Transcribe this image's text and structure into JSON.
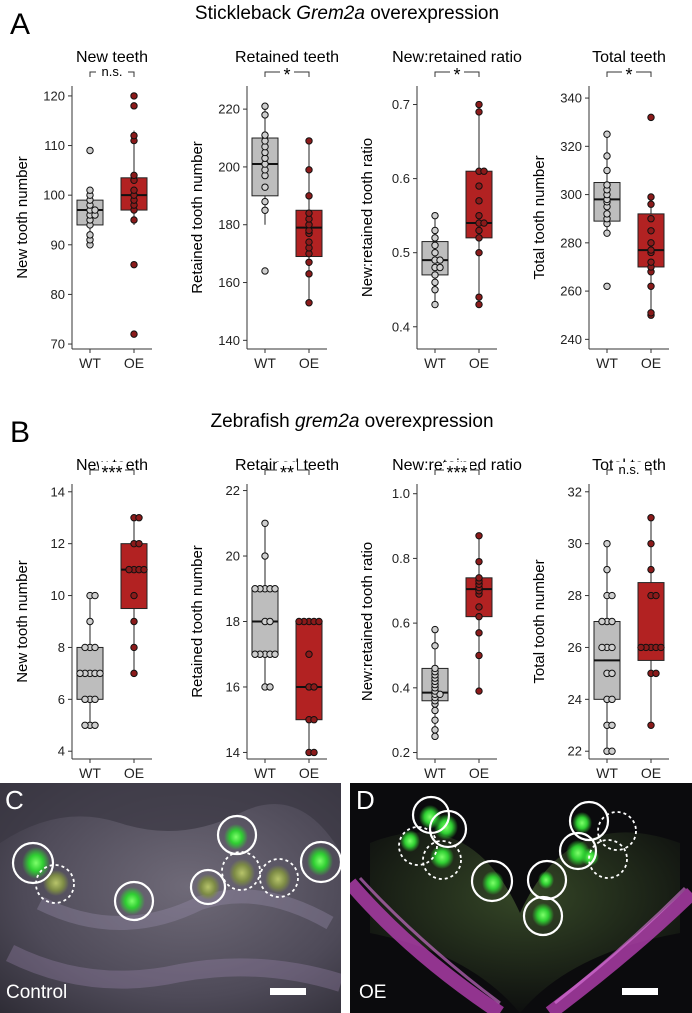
{
  "figure": {
    "panels": [
      {
        "letter": "A",
        "title_pre": "Stickleback ",
        "title_em": "Grem2a",
        "title_post": " overexpression"
      },
      {
        "letter": "B",
        "title_pre": "Zebrafish ",
        "title_em": "grem2a",
        "title_post": " overexpression"
      },
      {
        "letter": "C",
        "label": "Control"
      },
      {
        "letter": "D",
        "label": "OE"
      }
    ]
  },
  "colors": {
    "wt_box": "#bdbdbd",
    "oe_box": "#b22222",
    "wt_point": "#cfcfcf",
    "oe_point": "#8b1a1a"
  },
  "chart_data": [
    {
      "type": "box",
      "title": "New teeth",
      "ylabel": "New tooth number",
      "categories": [
        "WT",
        "OE"
      ],
      "significance": "n.s.",
      "ylim": [
        69,
        122
      ],
      "yticks": [
        70,
        80,
        90,
        100,
        110,
        120
      ],
      "series": [
        {
          "name": "WT",
          "values": [
            90,
            91,
            92,
            94,
            95,
            96,
            96,
            97,
            97,
            98,
            99,
            100,
            101,
            109
          ],
          "box": [
            94,
            97,
            99
          ],
          "whiskers": [
            90,
            101
          ]
        },
        {
          "name": "OE",
          "values": [
            72,
            86,
            95,
            97,
            98,
            99,
            100,
            101,
            103,
            104,
            111,
            112,
            118,
            120
          ],
          "box": [
            97,
            100,
            103.5
          ],
          "whiskers": [
            94,
            113
          ]
        }
      ]
    },
    {
      "type": "box",
      "title": "Retained teeth",
      "ylabel": "Retained tooth number",
      "categories": [
        "WT",
        "OE"
      ],
      "significance": "*",
      "ylim": [
        137,
        228
      ],
      "yticks": [
        140,
        160,
        180,
        200,
        220
      ],
      "series": [
        {
          "name": "WT",
          "values": [
            164,
            185,
            188,
            193,
            197,
            199,
            201,
            203,
            205,
            207,
            209,
            211,
            218,
            221
          ],
          "box": [
            190,
            201,
            210
          ],
          "whiskers": [
            180,
            221
          ]
        },
        {
          "name": "OE",
          "values": [
            153,
            163,
            167,
            170,
            172,
            174,
            177,
            178,
            180,
            182,
            184,
            190,
            199,
            209
          ],
          "box": [
            169,
            179,
            185
          ],
          "whiskers": [
            154,
            210
          ]
        }
      ]
    },
    {
      "type": "box",
      "title": "New:retained ratio",
      "ylabel": "New:retained tooth ratio",
      "categories": [
        "WT",
        "OE"
      ],
      "significance": "*",
      "ylim": [
        0.37,
        0.725
      ],
      "yticks": [
        0.4,
        0.5,
        0.6,
        0.7
      ],
      "series": [
        {
          "name": "WT",
          "values": [
            0.43,
            0.45,
            0.46,
            0.47,
            0.48,
            0.48,
            0.49,
            0.49,
            0.5,
            0.51,
            0.52,
            0.53,
            0.55
          ],
          "box": [
            0.47,
            0.49,
            0.515
          ],
          "whiskers": [
            0.43,
            0.55
          ]
        },
        {
          "name": "OE",
          "values": [
            0.43,
            0.44,
            0.5,
            0.52,
            0.53,
            0.54,
            0.54,
            0.55,
            0.57,
            0.59,
            0.61,
            0.61,
            0.69,
            0.7
          ],
          "box": [
            0.52,
            0.54,
            0.61
          ],
          "whiskers": [
            0.43,
            0.7
          ]
        }
      ]
    },
    {
      "type": "box",
      "title": "Total teeth",
      "ylabel": "Total tooth number",
      "categories": [
        "WT",
        "OE"
      ],
      "significance": "*",
      "ylim": [
        236,
        345
      ],
      "yticks": [
        240,
        260,
        280,
        300,
        320,
        340
      ],
      "series": [
        {
          "name": "WT",
          "values": [
            262,
            284,
            288,
            290,
            292,
            295,
            297,
            298,
            300,
            302,
            304,
            310,
            316,
            325
          ],
          "box": [
            289,
            298,
            305
          ],
          "whiskers": [
            284,
            325
          ]
        },
        {
          "name": "OE",
          "values": [
            250,
            251,
            262,
            268,
            270,
            272,
            276,
            277,
            280,
            285,
            290,
            296,
            299,
            332
          ],
          "box": [
            270,
            277,
            292
          ],
          "whiskers": [
            250,
            299
          ]
        }
      ]
    },
    {
      "type": "box",
      "title": "New teeth",
      "ylabel": "New tooth number",
      "categories": [
        "WT",
        "OE"
      ],
      "significance": "***",
      "ylim": [
        3.7,
        14.3
      ],
      "yticks": [
        4,
        6,
        8,
        10,
        12,
        14
      ],
      "series": [
        {
          "name": "WT",
          "values": [
            5,
            5,
            5,
            6,
            6,
            6,
            7,
            7,
            7,
            7,
            7,
            8,
            8,
            8,
            9,
            10,
            10
          ],
          "box": [
            6,
            7,
            8
          ],
          "whiskers": [
            5,
            10
          ]
        },
        {
          "name": "OE",
          "values": [
            7,
            8,
            9,
            10,
            11,
            11,
            11,
            11,
            12,
            12,
            13,
            13
          ],
          "box": [
            9.5,
            11,
            12
          ],
          "whiskers": [
            7,
            13
          ]
        }
      ]
    },
    {
      "type": "box",
      "title": "Retained teeth",
      "ylabel": "Retained tooth number",
      "categories": [
        "WT",
        "OE"
      ],
      "significance": "**",
      "ylim": [
        13.8,
        22.2
      ],
      "yticks": [
        14,
        16,
        18,
        20,
        22
      ],
      "series": [
        {
          "name": "WT",
          "values": [
            16,
            16,
            17,
            17,
            17,
            17,
            17,
            18,
            18,
            19,
            19,
            19,
            19,
            19,
            20,
            21
          ],
          "box": [
            17,
            18,
            19
          ],
          "whiskers": [
            16,
            21
          ]
        },
        {
          "name": "OE",
          "values": [
            14,
            14,
            15,
            15,
            16,
            16,
            17,
            18,
            18,
            18,
            18,
            18
          ],
          "box": [
            15,
            16,
            18
          ],
          "whiskers": [
            14,
            18
          ]
        }
      ]
    },
    {
      "type": "box",
      "title": "New:retained ratio",
      "ylabel": "New:retained tooth ratio",
      "categories": [
        "WT",
        "OE"
      ],
      "significance": "***",
      "ylim": [
        0.18,
        1.03
      ],
      "yticks": [
        0.2,
        0.4,
        0.6,
        0.8,
        1.0
      ],
      "series": [
        {
          "name": "WT",
          "values": [
            0.25,
            0.27,
            0.3,
            0.33,
            0.35,
            0.36,
            0.37,
            0.38,
            0.38,
            0.39,
            0.4,
            0.41,
            0.42,
            0.43,
            0.44,
            0.45,
            0.46,
            0.53,
            0.58
          ],
          "box": [
            0.36,
            0.385,
            0.46
          ],
          "whiskers": [
            0.25,
            0.58
          ]
        },
        {
          "name": "OE",
          "values": [
            0.39,
            0.5,
            0.57,
            0.62,
            0.65,
            0.69,
            0.7,
            0.71,
            0.72,
            0.73,
            0.74,
            0.79,
            0.87
          ],
          "box": [
            0.62,
            0.705,
            0.74
          ],
          "whiskers": [
            0.39,
            0.87
          ]
        }
      ]
    },
    {
      "type": "box",
      "title": "Total teeth",
      "ylabel": "Total tooth number",
      "categories": [
        "WT",
        "OE"
      ],
      "significance": "n.s.",
      "ylim": [
        21.7,
        32.3
      ],
      "yticks": [
        22,
        24,
        26,
        28,
        30,
        32
      ],
      "series": [
        {
          "name": "WT",
          "values": [
            22,
            22,
            23,
            23,
            24,
            24,
            25,
            25,
            26,
            26,
            26,
            27,
            27,
            27,
            28,
            28,
            29,
            30
          ],
          "box": [
            24,
            25.5,
            27
          ],
          "whiskers": [
            22,
            30
          ]
        },
        {
          "name": "OE",
          "values": [
            23,
            25,
            25,
            26,
            26,
            26,
            26,
            26,
            28,
            28,
            29,
            30,
            31
          ],
          "box": [
            25.5,
            26,
            28.5
          ],
          "whiskers": [
            23,
            31
          ]
        }
      ]
    }
  ]
}
